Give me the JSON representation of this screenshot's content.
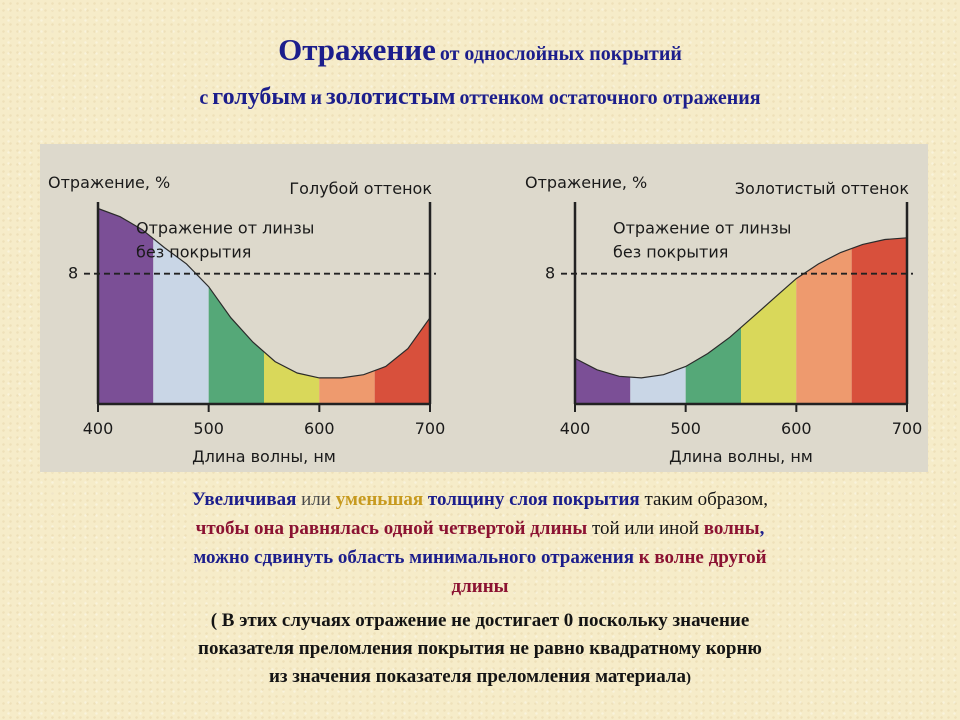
{
  "title": {
    "word_reflection": "Отражение",
    "line1_rest": "от однослойных покрытий",
    "line2_prefix": "с",
    "word_blue": "голубым",
    "and": "и",
    "word_gold": "золотистым",
    "line2_rest": "оттенком остаточного отражения"
  },
  "colors": {
    "title": "#1c1e8c",
    "accent_red": "#8b1232",
    "accent_gold": "#c79a1f",
    "bands": [
      "#7b4f96",
      "#c9d6e6",
      "#55a878",
      "#d9d85a",
      "#ee9a6e",
      "#d8503c"
    ]
  },
  "chart_data": [
    {
      "type": "area",
      "title": "Голубой оттенок",
      "ylabel": "Отражение, %",
      "xlabel": "Длина волны, нм",
      "x_ticks": [
        400,
        500,
        600,
        700
      ],
      "y_ticks": [
        8
      ],
      "xlim": [
        400,
        700
      ],
      "reference_line": {
        "y": 8,
        "label_line1": "Отражение от линзы",
        "label_line2": "без покрытия"
      },
      "x": [
        400,
        420,
        440,
        460,
        480,
        500,
        520,
        540,
        560,
        580,
        600,
        620,
        640,
        660,
        680,
        700
      ],
      "y": [
        12.0,
        11.5,
        10.7,
        9.6,
        8.6,
        7.2,
        5.3,
        3.8,
        2.6,
        1.9,
        1.6,
        1.6,
        1.8,
        2.3,
        3.4,
        5.3
      ],
      "grid": false
    },
    {
      "type": "area",
      "title": "Золотистый оттенок",
      "ylabel": "Отражение, %",
      "xlabel": "Длина волны, нм",
      "x_ticks": [
        400,
        500,
        600,
        700
      ],
      "y_ticks": [
        8
      ],
      "xlim": [
        400,
        700
      ],
      "reference_line": {
        "y": 8,
        "label_line1": "Отражение от линзы",
        "label_line2": "без покрытия"
      },
      "x": [
        400,
        420,
        440,
        460,
        480,
        500,
        520,
        540,
        560,
        580,
        600,
        620,
        640,
        660,
        680,
        700
      ],
      "y": [
        2.8,
        2.1,
        1.7,
        1.6,
        1.8,
        2.3,
        3.1,
        4.1,
        5.3,
        6.5,
        7.7,
        8.6,
        9.3,
        9.8,
        10.1,
        10.2
      ],
      "grid": false
    }
  ],
  "paragraph": {
    "l1_a": "Увеличивая",
    "l1_b": "или",
    "l1_c": "уменьшая",
    "l1_d": "толщину слоя покрытия",
    "l1_e": "таким образом,",
    "l2_a": "чтобы она равнялась одной четвертой длины",
    "l2_b": "той или иной",
    "l2_c": "волны",
    "l2_d": ",",
    "l3_a": "можно сдвинуть область минимального отражения",
    "l3_b": "к волне другой",
    "l4": "длины"
  },
  "note": {
    "line1": "( В этих случаях отражение не достигает 0 поскольку значение",
    "line2": "показателя преломления покрытия не равно квадратному корню",
    "line3": "из значения показателя преломления материала",
    "close": ")"
  }
}
